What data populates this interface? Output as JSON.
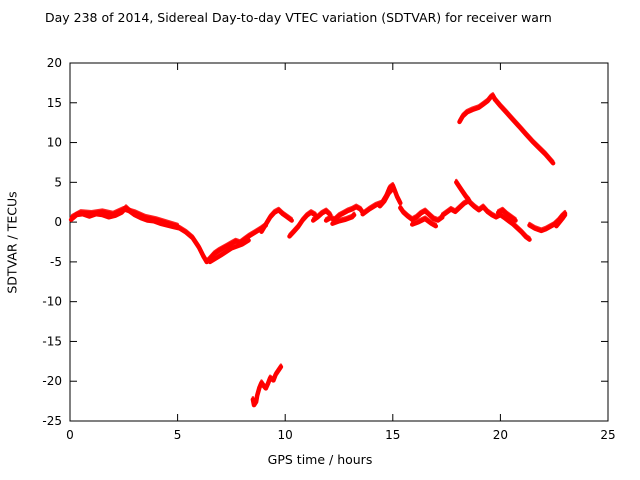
{
  "chart_data": {
    "type": "scatter",
    "title": "Day 238 of 2014, Sidereal Day-to-day VTEC variation (SDTVAR) for receiver warn",
    "xlabel": "GPS time / hours",
    "ylabel": "SDTVAR / TECUs",
    "xlim": [
      0,
      25
    ],
    "ylim": [
      -25,
      20
    ],
    "xticks": [
      0,
      5,
      10,
      15,
      20,
      25
    ],
    "yticks": [
      -25,
      -20,
      -15,
      -10,
      -5,
      0,
      5,
      10,
      15,
      20
    ],
    "grid": false,
    "legend": "none",
    "point_color": "#ff0000",
    "axis_color": "#000000",
    "series": [
      {
        "name": "SDTVAR",
        "segments": [
          [
            [
              0.05,
              0.3
            ],
            [
              0.3,
              0.9
            ],
            [
              0.6,
              1.0
            ],
            [
              0.9,
              0.7
            ],
            [
              1.2,
              1.0
            ],
            [
              1.5,
              0.9
            ],
            [
              1.8,
              0.6
            ],
            [
              2.1,
              0.8
            ],
            [
              2.4,
              1.2
            ],
            [
              2.6,
              1.8
            ],
            [
              2.8,
              1.3
            ],
            [
              3.0,
              0.9
            ],
            [
              3.3,
              0.5
            ],
            [
              3.6,
              0.2
            ],
            [
              3.9,
              0.1
            ],
            [
              4.2,
              -0.2
            ],
            [
              4.5,
              -0.4
            ],
            [
              4.8,
              -0.6
            ],
            [
              5.1,
              -0.8
            ],
            [
              5.4,
              -1.3
            ],
            [
              5.7,
              -2.0
            ],
            [
              6.0,
              -3.2
            ],
            [
              6.2,
              -4.3
            ],
            [
              6.35,
              -5.0
            ]
          ],
          [
            [
              0.1,
              0.6
            ],
            [
              0.5,
              1.2
            ],
            [
              1.0,
              1.1
            ],
            [
              1.5,
              1.3
            ],
            [
              2.0,
              1.0
            ],
            [
              2.5,
              1.6
            ],
            [
              3.0,
              1.2
            ],
            [
              3.5,
              0.6
            ],
            [
              4.0,
              0.3
            ],
            [
              4.5,
              -0.1
            ],
            [
              5.0,
              -0.5
            ]
          ],
          [
            [
              6.35,
              -5.0
            ],
            [
              6.5,
              -4.6
            ],
            [
              6.7,
              -4.0
            ],
            [
              6.9,
              -3.6
            ],
            [
              7.1,
              -3.3
            ],
            [
              7.3,
              -3.0
            ],
            [
              7.5,
              -2.7
            ],
            [
              7.7,
              -2.4
            ],
            [
              7.9,
              -2.6
            ],
            [
              8.1,
              -2.2
            ],
            [
              8.3,
              -1.8
            ],
            [
              8.6,
              -1.3
            ],
            [
              8.9,
              -0.8
            ],
            [
              9.1,
              -0.4
            ]
          ],
          [
            [
              6.5,
              -5.0
            ],
            [
              7.0,
              -4.2
            ],
            [
              7.5,
              -3.3
            ],
            [
              8.0,
              -2.8
            ],
            [
              8.3,
              -2.3
            ]
          ],
          [
            [
              8.9,
              -1.2
            ],
            [
              9.1,
              -0.3
            ],
            [
              9.3,
              0.6
            ],
            [
              9.5,
              1.2
            ],
            [
              9.7,
              1.5
            ],
            [
              9.9,
              1.0
            ],
            [
              10.1,
              0.6
            ],
            [
              10.3,
              0.2
            ]
          ],
          [
            [
              10.2,
              -1.8
            ],
            [
              10.4,
              -1.2
            ],
            [
              10.6,
              -0.6
            ],
            [
              10.8,
              0.2
            ],
            [
              11.0,
              0.8
            ],
            [
              11.2,
              1.2
            ],
            [
              11.4,
              0.9
            ]
          ],
          [
            [
              11.3,
              0.2
            ],
            [
              11.5,
              0.6
            ],
            [
              11.7,
              1.1
            ],
            [
              11.9,
              1.4
            ],
            [
              12.1,
              0.9
            ]
          ],
          [
            [
              11.9,
              0.2
            ],
            [
              12.1,
              0.5
            ],
            [
              12.3,
              0.3
            ],
            [
              12.5,
              0.8
            ],
            [
              12.7,
              1.1
            ],
            [
              12.9,
              1.4
            ],
            [
              13.1,
              1.6
            ],
            [
              13.3,
              1.9
            ],
            [
              13.5,
              1.6
            ],
            [
              13.6,
              1.2
            ]
          ],
          [
            [
              12.2,
              -0.2
            ],
            [
              12.5,
              0.1
            ],
            [
              12.8,
              0.3
            ],
            [
              13.1,
              0.6
            ],
            [
              13.2,
              0.9
            ]
          ],
          [
            [
              13.6,
              1.0
            ],
            [
              13.9,
              1.6
            ],
            [
              14.2,
              2.1
            ],
            [
              14.5,
              2.4
            ],
            [
              14.7,
              3.3
            ],
            [
              14.85,
              4.3
            ],
            [
              15.0,
              4.6
            ],
            [
              15.1,
              3.9
            ],
            [
              15.2,
              3.2
            ],
            [
              15.35,
              2.4
            ]
          ],
          [
            [
              14.4,
              2.0
            ],
            [
              14.6,
              2.6
            ],
            [
              14.8,
              3.6
            ],
            [
              15.0,
              4.2
            ]
          ],
          [
            [
              15.35,
              1.8
            ],
            [
              15.5,
              1.2
            ],
            [
              15.7,
              0.7
            ],
            [
              15.9,
              0.3
            ],
            [
              16.1,
              0.6
            ],
            [
              16.3,
              1.1
            ],
            [
              16.5,
              1.4
            ],
            [
              16.7,
              0.9
            ],
            [
              16.9,
              0.4
            ],
            [
              17.1,
              0.2
            ],
            [
              17.3,
              0.6
            ]
          ],
          [
            [
              15.9,
              -0.3
            ],
            [
              16.2,
              0.0
            ],
            [
              16.5,
              0.4
            ],
            [
              16.8,
              -0.2
            ],
            [
              17.0,
              -0.5
            ]
          ],
          [
            [
              17.3,
              0.8
            ],
            [
              17.5,
              1.2
            ],
            [
              17.7,
              1.6
            ],
            [
              17.9,
              1.3
            ],
            [
              18.1,
              1.8
            ],
            [
              18.3,
              2.3
            ],
            [
              18.5,
              2.6
            ]
          ],
          [
            [
              17.95,
              5.0
            ],
            [
              18.1,
              4.4
            ],
            [
              18.25,
              3.8
            ],
            [
              18.4,
              3.2
            ],
            [
              18.55,
              2.7
            ]
          ],
          [
            [
              18.1,
              12.6
            ],
            [
              18.25,
              13.3
            ],
            [
              18.45,
              13.8
            ],
            [
              18.7,
              14.1
            ],
            [
              19.0,
              14.4
            ],
            [
              19.2,
              14.8
            ],
            [
              19.4,
              15.2
            ],
            [
              19.55,
              15.7
            ],
            [
              19.65,
              15.9
            ],
            [
              19.75,
              15.4
            ]
          ],
          [
            [
              19.75,
              15.4
            ],
            [
              20.0,
              14.6
            ],
            [
              20.3,
              13.7
            ],
            [
              20.6,
              12.8
            ],
            [
              20.9,
              11.9
            ],
            [
              21.2,
              11.0
            ],
            [
              21.5,
              10.1
            ],
            [
              21.8,
              9.3
            ],
            [
              22.1,
              8.5
            ],
            [
              22.45,
              7.4
            ]
          ],
          [
            [
              18.6,
              2.4
            ],
            [
              18.8,
              1.9
            ],
            [
              19.0,
              1.5
            ],
            [
              19.2,
              1.9
            ],
            [
              19.4,
              1.3
            ],
            [
              19.6,
              0.9
            ],
            [
              19.8,
              0.6
            ],
            [
              20.0,
              0.9
            ],
            [
              20.2,
              0.5
            ],
            [
              20.4,
              0.1
            ],
            [
              20.6,
              -0.3
            ],
            [
              20.8,
              -0.8
            ],
            [
              21.0,
              -1.3
            ],
            [
              21.2,
              -1.9
            ],
            [
              21.35,
              -2.2
            ]
          ],
          [
            [
              19.9,
              1.2
            ],
            [
              20.1,
              1.5
            ],
            [
              20.3,
              1.0
            ],
            [
              20.5,
              0.6
            ],
            [
              20.7,
              0.2
            ]
          ],
          [
            [
              21.35,
              -0.4
            ],
            [
              21.6,
              -0.8
            ],
            [
              21.9,
              -1.1
            ],
            [
              22.1,
              -0.9
            ],
            [
              22.3,
              -0.6
            ],
            [
              22.5,
              -0.3
            ],
            [
              22.7,
              0.2
            ],
            [
              22.85,
              0.7
            ],
            [
              23.0,
              1.1
            ]
          ],
          [
            [
              22.6,
              -0.5
            ],
            [
              22.75,
              0.0
            ],
            [
              22.9,
              0.5
            ],
            [
              23.0,
              0.9
            ]
          ],
          [
            [
              8.5,
              -22.3
            ],
            [
              8.55,
              -23.0
            ],
            [
              8.65,
              -22.6
            ],
            [
              8.7,
              -21.8
            ],
            [
              8.8,
              -20.8
            ],
            [
              8.9,
              -20.2
            ],
            [
              9.0,
              -20.6
            ],
            [
              9.1,
              -20.9
            ],
            [
              9.2,
              -20.3
            ],
            [
              9.3,
              -19.6
            ],
            [
              9.45,
              -19.9
            ],
            [
              9.55,
              -19.2
            ],
            [
              9.7,
              -18.6
            ],
            [
              9.8,
              -18.2
            ]
          ]
        ]
      }
    ]
  }
}
